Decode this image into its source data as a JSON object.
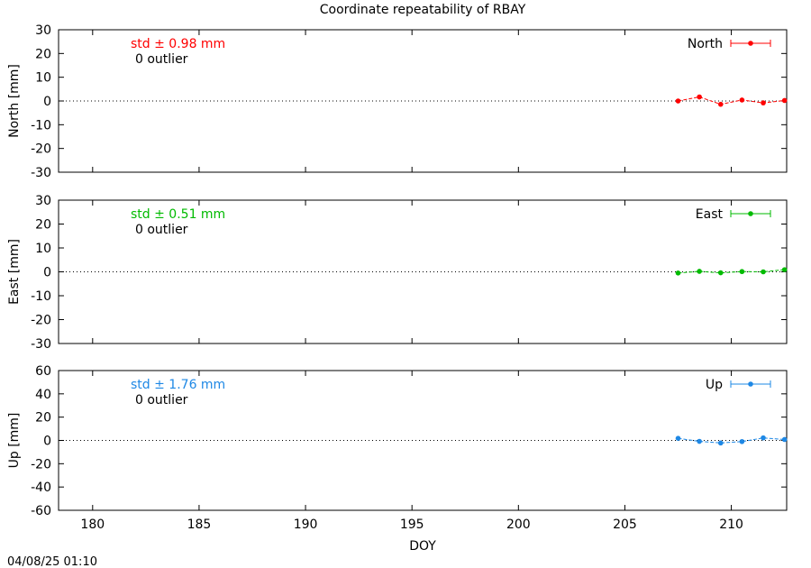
{
  "title": "Coordinate repeatability of RBAY",
  "timestamp": "04/08/25 01:10",
  "xlabel": "DOY",
  "chart_data": [
    {
      "type": "line",
      "ylabel": "North [mm]",
      "legend": "North",
      "color": "#ff0000",
      "std_label": "std ± 0.98 mm",
      "outlier_label": "0 outlier",
      "xlim": [
        178.4,
        212.6
      ],
      "ylim": [
        -30,
        30
      ],
      "y_ticks": [
        "-30",
        "-20",
        "-10",
        "0",
        "10",
        "20",
        "30"
      ],
      "x": [
        207.5,
        208.5,
        209.5,
        210.5,
        211.5,
        212.5
      ],
      "values": [
        0.0,
        1.7,
        -1.4,
        0.4,
        -0.8,
        0.2
      ]
    },
    {
      "type": "line",
      "ylabel": "East [mm]",
      "legend": "East",
      "color": "#00bb00",
      "std_label": "std ± 0.51 mm",
      "outlier_label": "0 outlier",
      "xlim": [
        178.4,
        212.6
      ],
      "ylim": [
        -30,
        30
      ],
      "y_ticks": [
        "-30",
        "-20",
        "-10",
        "0",
        "10",
        "20",
        "30"
      ],
      "x": [
        207.5,
        208.5,
        209.5,
        210.5,
        211.5,
        212.5
      ],
      "values": [
        -0.5,
        0.2,
        -0.4,
        0.1,
        0.0,
        0.9
      ]
    },
    {
      "type": "line",
      "ylabel": "Up [mm]",
      "legend": "Up",
      "color": "#1e88e5",
      "std_label": "std ± 1.76 mm",
      "outlier_label": "0 outlier",
      "xlim": [
        178.4,
        212.6
      ],
      "ylim": [
        -60,
        60
      ],
      "y_ticks": [
        "-60",
        "-40",
        "-20",
        "0",
        "20",
        "40",
        "60"
      ],
      "x": [
        207.5,
        208.5,
        209.5,
        210.5,
        211.5,
        212.5
      ],
      "values": [
        1.8,
        -0.8,
        -2.2,
        -1.0,
        2.2,
        0.8
      ]
    }
  ],
  "x_ticks": [
    "180",
    "185",
    "190",
    "195",
    "200",
    "205",
    "210"
  ]
}
